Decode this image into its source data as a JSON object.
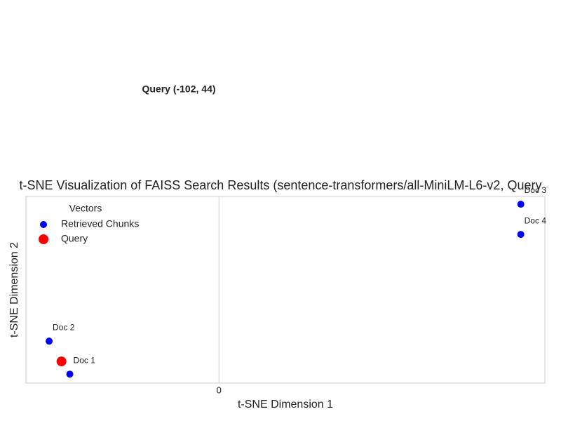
{
  "chart_data": {
    "type": "scatter",
    "title": "t-SNE Visualization of FAISS Search Results (sentence-transformers/all-MiniLM-L6-v2, Query",
    "x_label": "t-SNE Dimension 1",
    "y_label": "t-SNE Dimension 2",
    "annotation": "Query (-102, 44)",
    "legend_title": "Vectors",
    "legend": "upper left",
    "grid": true,
    "xlim": [
      -125,
      211
    ],
    "ylim": [
      30,
      150.5
    ],
    "xticks": [
      0
    ],
    "series": [
      {
        "name": "Retrieved Chunks",
        "color": "#0000ff",
        "x": [
          -96.6,
          -110,
          195.4,
          195.4
        ],
        "values": [
          35.8,
          57.1,
          145.5,
          126
        ],
        "labels": [
          "Doc 1",
          "Doc 2",
          "Doc 3",
          "Doc 4"
        ]
      },
      {
        "name": "Query",
        "color": "#ff0000",
        "x": [
          -102
        ],
        "values": [
          44
        ]
      }
    ]
  }
}
